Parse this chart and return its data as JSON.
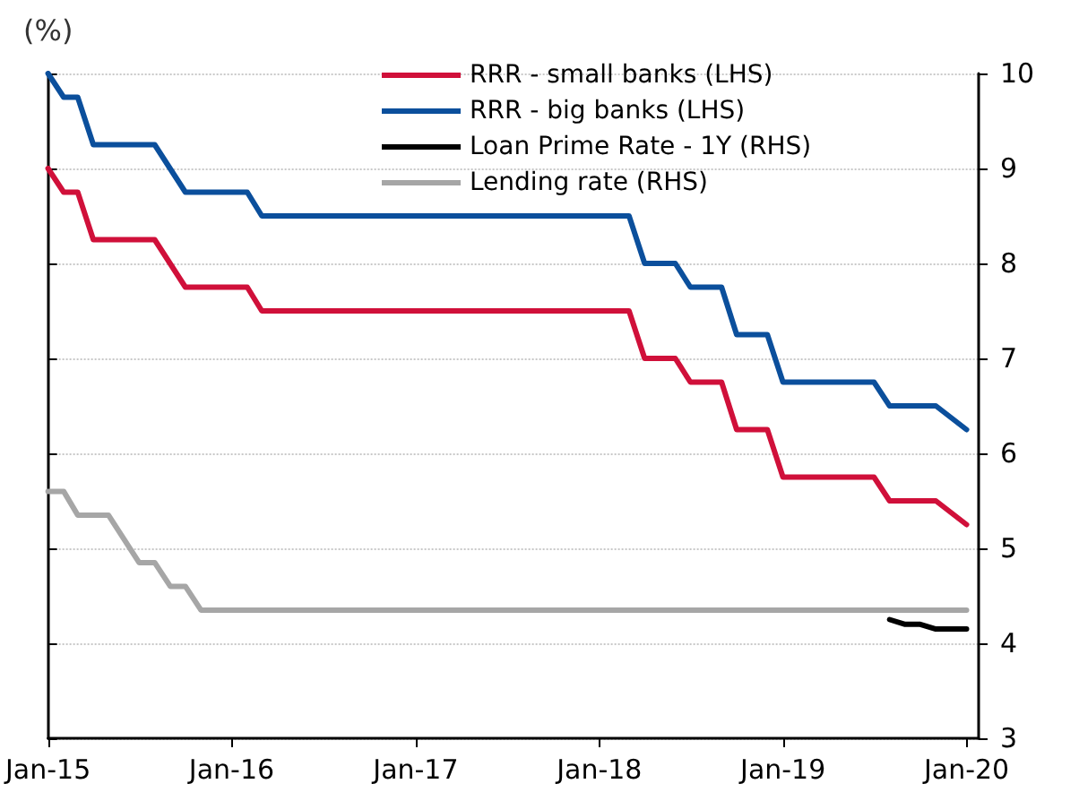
{
  "chart_data": {
    "type": "line",
    "ylabel": "(%)",
    "xlim": [
      "2015-01",
      "2020-01-25"
    ],
    "xticks": [
      {
        "value": "2015-01",
        "label": "Jan-15"
      },
      {
        "value": "2016-01",
        "label": "Jan-16"
      },
      {
        "value": "2017-01",
        "label": "Jan-17"
      },
      {
        "value": "2018-01",
        "label": "Jan-18"
      },
      {
        "value": "2019-01",
        "label": "Jan-19"
      },
      {
        "value": "2020-01",
        "label": "Jan-20"
      }
    ],
    "ylim": [
      3,
      10
    ],
    "yticks": [
      3,
      4,
      5,
      6,
      7,
      8,
      9,
      10
    ],
    "grid": "y",
    "legend": "top right",
    "marker": "none",
    "line_style": "solid",
    "series": [
      {
        "name": "RRR - small banks (LHS)",
        "color": "#d0103a",
        "x": [
          "2015-01",
          "2015-02",
          "2015-03",
          "2015-04",
          "2015-08",
          "2015-10",
          "2016-02",
          "2016-03",
          "2018-03",
          "2018-04",
          "2018-06",
          "2018-07",
          "2018-09",
          "2018-10",
          "2018-12",
          "2019-01",
          "2019-07",
          "2019-08",
          "2019-11",
          "2020-01"
        ],
        "values": [
          9,
          8.75,
          8.75,
          8.25,
          8.25,
          7.75,
          7.75,
          7.5,
          7.5,
          7,
          7,
          6.75,
          6.75,
          6.25,
          6.25,
          5.75,
          5.75,
          5.5,
          5.5,
          5.25
        ]
      },
      {
        "name": "RRR - big banks (LHS)",
        "color": "#0b4f9c",
        "x": [
          "2015-01",
          "2015-02",
          "2015-03",
          "2015-04",
          "2015-08",
          "2015-10",
          "2016-02",
          "2016-03",
          "2018-03",
          "2018-04",
          "2018-06",
          "2018-07",
          "2018-09",
          "2018-10",
          "2018-12",
          "2019-01",
          "2019-07",
          "2019-08",
          "2019-11",
          "2020-01"
        ],
        "values": [
          10,
          9.75,
          9.75,
          9.25,
          9.25,
          8.75,
          8.75,
          8.5,
          8.5,
          8,
          8,
          7.75,
          7.75,
          7.25,
          7.25,
          6.75,
          6.75,
          6.5,
          6.5,
          6.25
        ]
      },
      {
        "name": "Loan Prime Rate - 1Y (RHS)",
        "color": "#000000",
        "x": [
          "2019-08",
          "2019-09",
          "2019-10",
          "2019-11",
          "2020-01"
        ],
        "values": [
          4.25,
          4.2,
          4.2,
          4.15,
          4.15
        ]
      },
      {
        "name": "Lending rate (RHS)",
        "color": "#a6a6a6",
        "x": [
          "2015-01",
          "2015-02",
          "2015-03",
          "2015-05",
          "2015-07",
          "2015-08",
          "2015-09",
          "2015-10",
          "2015-11",
          "2020-01"
        ],
        "values": [
          5.6,
          5.6,
          5.35,
          5.35,
          4.85,
          4.85,
          4.6,
          4.6,
          4.35,
          4.35
        ]
      }
    ]
  }
}
